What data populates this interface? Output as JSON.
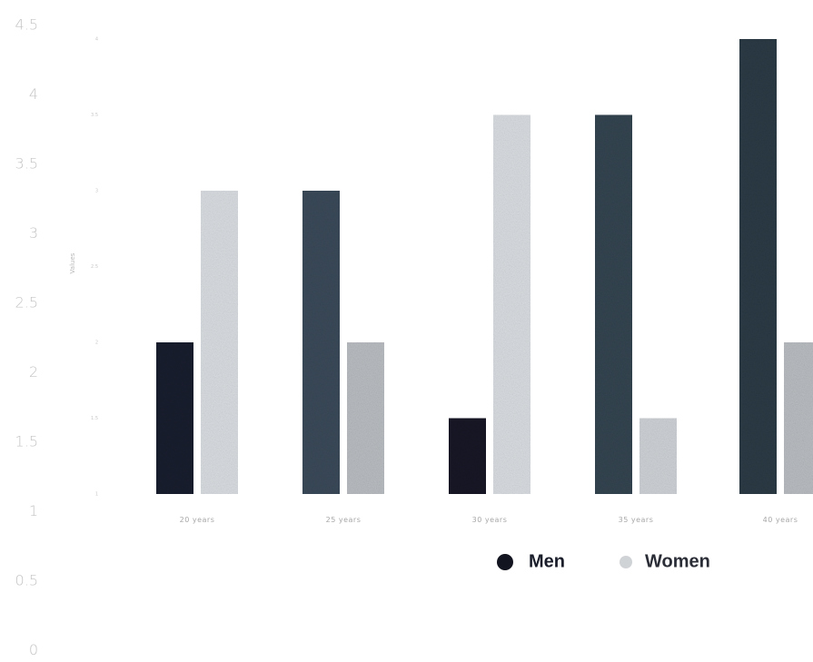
{
  "chart_data": {
    "type": "bar",
    "title": "",
    "xlabel": "",
    "ylabel": "Values",
    "ylim": [
      1,
      4.5
    ],
    "outer_axis_ticks": [
      "4.5",
      "4",
      "3.5",
      "3",
      "2.5",
      "2",
      "1.5",
      "1",
      "0.5",
      "0"
    ],
    "inner_axis_ticks": [
      "4",
      "3.5",
      "3",
      "2.5",
      "2",
      "1.5",
      "1"
    ],
    "categories": [
      "20 years",
      "25 years",
      "30 years",
      "35 years",
      "40 years"
    ],
    "series": [
      {
        "name": "Men",
        "values": [
          2.0,
          3.0,
          1.5,
          3.5,
          4.0
        ],
        "colors": [
          "#1a1d2e",
          "#3a4958",
          "#141726",
          "#334450",
          "#2b3a45"
        ]
      },
      {
        "name": "Women",
        "values": [
          3.0,
          2.0,
          3.5,
          1.5,
          2.0
        ],
        "colors": [
          "#d8dce0",
          "#b8bcc0",
          "#d8dce0",
          "#cdd1d5",
          "#b8bcc0"
        ]
      }
    ],
    "grid": false,
    "legend": {
      "position": "bottom-right",
      "marker_colors": [
        "#12141f",
        "#d0d3d6"
      ],
      "text_colors": [
        "#1a1d2a",
        "#2a2d36"
      ]
    }
  }
}
